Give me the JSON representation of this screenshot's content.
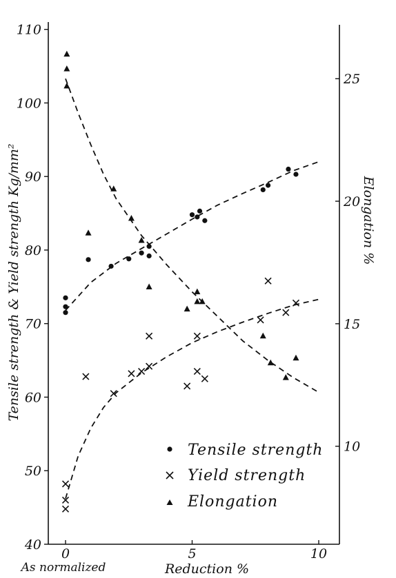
{
  "chart_data": {
    "type": "scatter",
    "xlabel": "Reduction %",
    "x_tick_labels": [
      "0",
      "5",
      "10"
    ],
    "x_ticks": [
      0,
      5,
      10
    ],
    "x_extra_label": "As normalized",
    "xlim": [
      -0.8,
      11
    ],
    "ylabel": "Tensile strength & Yield strength Kg/mm²",
    "y_ticks": [
      40,
      50,
      60,
      70,
      80,
      90,
      100,
      110
    ],
    "y_tick_labels": [
      "40",
      "50",
      "60",
      "70",
      "80",
      "90",
      "100",
      "110"
    ],
    "ylim": [
      40,
      111
    ],
    "y2label": "Elongation %",
    "y2_ticks": [
      10,
      15,
      20,
      25
    ],
    "y2_tick_labels": [
      "10",
      "15",
      "20",
      "25"
    ],
    "y2lim": [
      6,
      27.2
    ],
    "grid": false,
    "legend_position": "bottom-right",
    "series": [
      {
        "name": "Tensile strength",
        "marker": "dot",
        "axis": "left",
        "points": [
          [
            0,
            71.5
          ],
          [
            0,
            72.3
          ],
          [
            0,
            73.5
          ],
          [
            0.9,
            78.7
          ],
          [
            1.8,
            77.8
          ],
          [
            2.5,
            78.8
          ],
          [
            3.0,
            79.6
          ],
          [
            3.3,
            79.2
          ],
          [
            3.3,
            80.5
          ],
          [
            5.0,
            84.8
          ],
          [
            5.2,
            84.5
          ],
          [
            5.3,
            85.3
          ],
          [
            5.5,
            84.0
          ],
          [
            7.8,
            88.2
          ],
          [
            8.0,
            88.8
          ],
          [
            8.8,
            91.0
          ],
          [
            9.1,
            90.3
          ]
        ],
        "trend": [
          [
            0,
            71.8
          ],
          [
            1,
            75.6
          ],
          [
            2,
            78.2
          ],
          [
            3,
            80.2
          ],
          [
            4,
            82.2
          ],
          [
            5,
            84.2
          ],
          [
            6,
            86.1
          ],
          [
            7,
            87.7
          ],
          [
            8,
            89.2
          ],
          [
            9,
            90.8
          ],
          [
            10,
            92.0
          ]
        ]
      },
      {
        "name": "Yield strength",
        "marker": "x",
        "axis": "left",
        "points": [
          [
            0,
            44.8
          ],
          [
            0,
            46.0
          ],
          [
            0,
            48.2
          ],
          [
            0.8,
            62.8
          ],
          [
            1.9,
            60.5
          ],
          [
            2.6,
            63.2
          ],
          [
            3.0,
            63.5
          ],
          [
            3.3,
            64.2
          ],
          [
            3.3,
            68.3
          ],
          [
            4.8,
            61.5
          ],
          [
            5.2,
            63.5
          ],
          [
            5.2,
            68.3
          ],
          [
            5.5,
            62.5
          ],
          [
            7.7,
            70.5
          ],
          [
            8.0,
            75.8
          ],
          [
            8.7,
            71.5
          ],
          [
            9.1,
            72.8
          ]
        ],
        "trend": [
          [
            0,
            46.2
          ],
          [
            0.5,
            52.0
          ],
          [
            1,
            55.8
          ],
          [
            1.5,
            58.6
          ],
          [
            2,
            60.6
          ],
          [
            3,
            63.3
          ],
          [
            4,
            65.5
          ],
          [
            5,
            67.4
          ],
          [
            6,
            68.9
          ],
          [
            7,
            70.2
          ],
          [
            8,
            71.4
          ],
          [
            9,
            72.5
          ],
          [
            10,
            73.3
          ]
        ]
      },
      {
        "name": "Elongation",
        "marker": "triangle",
        "axis": "right",
        "points": [
          [
            0.05,
            24.7
          ],
          [
            0.05,
            25.4
          ],
          [
            0.05,
            26.0
          ],
          [
            0.9,
            18.7
          ],
          [
            1.9,
            20.5
          ],
          [
            2.6,
            19.3
          ],
          [
            3.0,
            18.4
          ],
          [
            3.3,
            16.5
          ],
          [
            4.8,
            15.6
          ],
          [
            5.2,
            16.3
          ],
          [
            5.2,
            15.9
          ],
          [
            5.4,
            15.9
          ],
          [
            7.8,
            14.5
          ],
          [
            8.1,
            13.4
          ],
          [
            8.7,
            12.8
          ],
          [
            9.1,
            13.6
          ]
        ],
        "trend": [
          [
            0,
            25.0
          ],
          [
            0.5,
            23.6
          ],
          [
            1,
            22.3
          ],
          [
            1.5,
            21.1
          ],
          [
            2,
            20.1
          ],
          [
            3,
            18.6
          ],
          [
            4,
            17.4
          ],
          [
            5,
            16.3
          ],
          [
            6,
            15.3
          ],
          [
            7,
            14.3
          ],
          [
            8,
            13.5
          ],
          [
            9,
            12.8
          ],
          [
            10,
            12.2
          ]
        ]
      }
    ]
  }
}
